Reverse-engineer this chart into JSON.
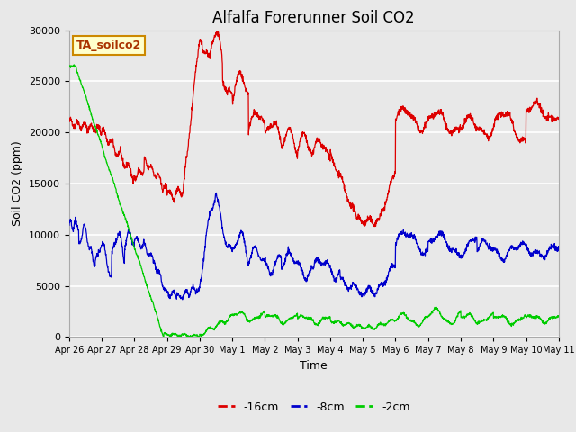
{
  "title": "Alfalfa Forerunner Soil CO2",
  "xlabel": "Time",
  "ylabel": "Soil CO2 (ppm)",
  "annotation_text": "TA_soilco2",
  "annotation_bg": "#ffffcc",
  "annotation_border": "#cc8800",
  "xlim": [
    0,
    15
  ],
  "ylim": [
    0,
    30000
  ],
  "yticks": [
    0,
    5000,
    10000,
    15000,
    20000,
    25000,
    30000
  ],
  "xtick_labels": [
    "Apr 26",
    "Apr 27",
    "Apr 28",
    "Apr 29",
    "Apr 30",
    "May 1",
    "May 2",
    "May 3",
    "May 4",
    "May 5",
    "May 6",
    "May 7",
    "May 8",
    "May 9",
    "May 10",
    "May 11"
  ],
  "fig_bg_color": "#e8e8e8",
  "plot_bg_color": "#e8e8e8",
  "grid_color": "#ffffff",
  "line_colors": [
    "#dd0000",
    "#0000cc",
    "#00cc00"
  ],
  "line_labels": [
    "-16cm",
    "-8cm",
    "-2cm"
  ],
  "title_fontsize": 12,
  "label_fontsize": 9,
  "tick_fontsize": 8
}
